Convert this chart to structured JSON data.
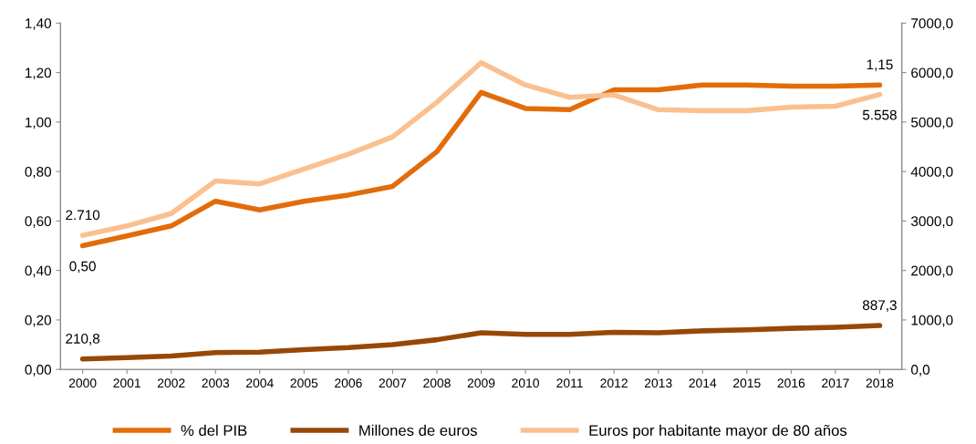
{
  "chart_data": {
    "type": "line",
    "categories": [
      "2000",
      "2001",
      "2002",
      "2003",
      "2004",
      "2005",
      "2006",
      "2007",
      "2008",
      "2009",
      "2010",
      "2011",
      "2012",
      "2013",
      "2014",
      "2015",
      "2016",
      "2017",
      "2018"
    ],
    "series": [
      {
        "name": "% del PIB",
        "color": "#e36c0a",
        "values": [
          0.5,
          0.54,
          0.58,
          0.68,
          0.645,
          0.68,
          0.705,
          0.74,
          0.88,
          1.12,
          1.055,
          1.05,
          1.13,
          1.13,
          1.15,
          1.15,
          1.145,
          1.145,
          1.15
        ],
        "value_labels": [
          "0,50",
          null,
          null,
          null,
          null,
          null,
          null,
          null,
          null,
          null,
          null,
          null,
          null,
          null,
          null,
          null,
          null,
          null,
          "1,15"
        ]
      },
      {
        "name": "Millones de euros",
        "color": "#974806",
        "axis": "y2",
        "values": [
          210.8,
          240,
          270,
          340,
          350,
          400,
          440,
          500,
          600,
          740,
          710,
          710,
          750,
          740,
          780,
          800,
          830,
          850,
          887.3
        ],
        "value_labels": [
          "210,8",
          null,
          null,
          null,
          null,
          null,
          null,
          null,
          null,
          null,
          null,
          null,
          null,
          null,
          null,
          null,
          null,
          null,
          "887,3"
        ]
      },
      {
        "name": "Euros por habitante mayor de 80 años",
        "color": "#fac090",
        "axis": "y2",
        "values": [
          2710,
          2900,
          3150,
          3810,
          3750,
          4050,
          4350,
          4700,
          5400,
          6200,
          5750,
          5500,
          5550,
          5250,
          5230,
          5230,
          5300,
          5320,
          5558
        ],
        "value_labels": [
          "2.710",
          null,
          null,
          null,
          null,
          null,
          null,
          null,
          null,
          null,
          null,
          null,
          null,
          null,
          null,
          null,
          null,
          null,
          "5.558"
        ]
      }
    ],
    "ylim": [
      0,
      1.4
    ],
    "yticks": [
      {
        "value": 0,
        "label": "0,00"
      },
      {
        "value": 0.2,
        "label": "0,20"
      },
      {
        "value": 0.4,
        "label": "0,40"
      },
      {
        "value": 0.6,
        "label": "0,60"
      },
      {
        "value": 0.8,
        "label": "0,80"
      },
      {
        "value": 1.0,
        "label": "1,00"
      },
      {
        "value": 1.2,
        "label": "1,20"
      },
      {
        "value": 1.4,
        "label": "1,40"
      }
    ],
    "y2lim": [
      0,
      7000
    ],
    "y2ticks": [
      {
        "value": 0,
        "label": "0,0"
      },
      {
        "value": 1000,
        "label": "1000,0"
      },
      {
        "value": 2000,
        "label": "2000,0"
      },
      {
        "value": 3000,
        "label": "3000,0"
      },
      {
        "value": 4000,
        "label": "4000,0"
      },
      {
        "value": 5000,
        "label": "5000,0"
      },
      {
        "value": 6000,
        "label": "6000,0"
      },
      {
        "value": 7000,
        "label": "7000,0"
      }
    ],
    "grid": false,
    "legend": "bottom",
    "marker": "none",
    "line_style": "solid"
  }
}
